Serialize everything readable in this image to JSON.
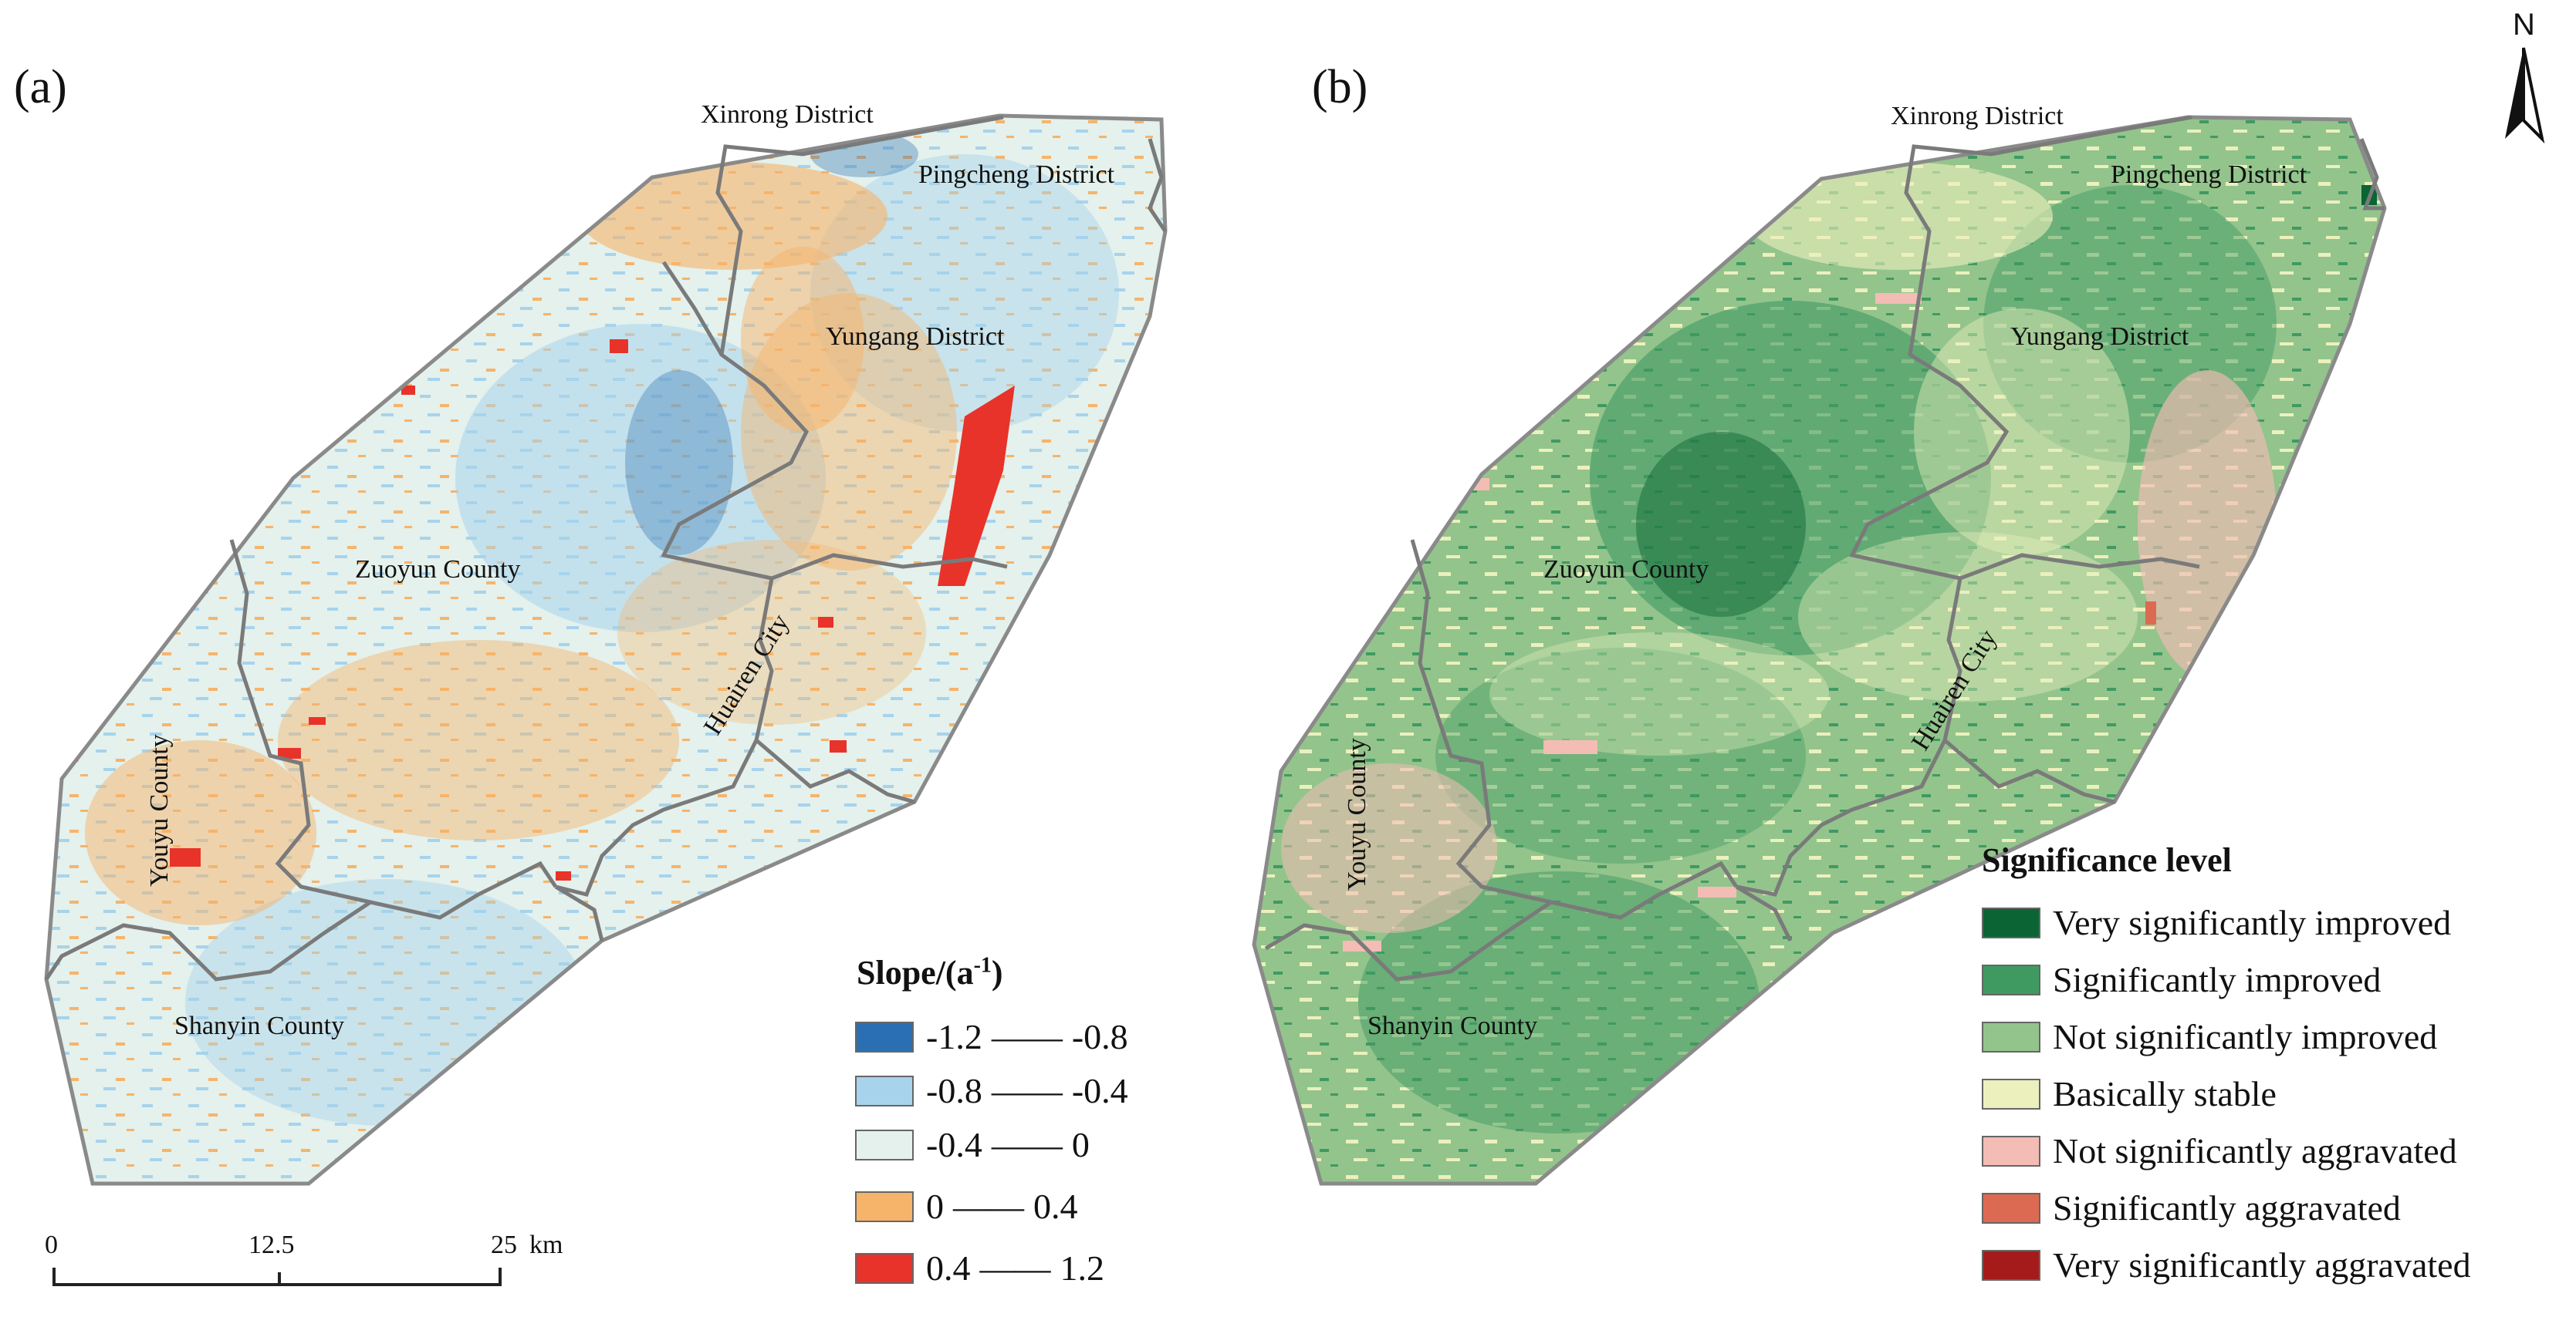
{
  "panels": [
    {
      "label": "(a)",
      "places": [
        "Xinrong District",
        "Pingcheng District",
        "Yungang District",
        "Zuoyun County",
        "Huairen City",
        "Youyu County",
        "Shanyin County"
      ],
      "legend": {
        "title": "Slope/(a",
        "title_sup": "-1",
        "title_end": ")",
        "items": [
          {
            "from": "-1.2",
            "to": "-0.8",
            "color": "#2b6fb3"
          },
          {
            "from": "-0.8",
            "to": "-0.4",
            "color": "#a7d3ec"
          },
          {
            "from": "-0.4",
            "to": "0",
            "color": "#e4f1ec"
          },
          {
            "from": "0",
            "to": "0.4",
            "color": "#f6b46b"
          },
          {
            "from": "0.4",
            "to": "1.2",
            "color": "#e8332a"
          }
        ]
      }
    },
    {
      "label": "(b)",
      "places": [
        "Xinrong District",
        "Pingcheng District",
        "Yungang District",
        "Zuoyun County",
        "Huairen City",
        "Youyu County",
        "Shanyin County"
      ],
      "legend": {
        "title": "Significance level",
        "items": [
          {
            "label": "Very significantly improved",
            "color": "#0b6434"
          },
          {
            "label": "Significantly improved",
            "color": "#3f9a62"
          },
          {
            "label": "Not significantly improved",
            "color": "#93c48c"
          },
          {
            "label": "Basically stable",
            "color": "#ecf0bd"
          },
          {
            "label": "Not significantly aggravated",
            "color": "#f3bcb4"
          },
          {
            "label": "Significantly aggravated",
            "color": "#dc6a52"
          },
          {
            "label": "Very significantly aggravated",
            "color": "#a51b1b"
          }
        ]
      }
    }
  ],
  "scale_bar": {
    "ticks": [
      "0",
      "12.5",
      "25"
    ],
    "unit": "km"
  },
  "north_arrow": {
    "label": "N"
  },
  "map_colors": {
    "boundary": "#8a8a8a",
    "a_base": "#e4f1ec",
    "b_base": "#93c48c"
  }
}
